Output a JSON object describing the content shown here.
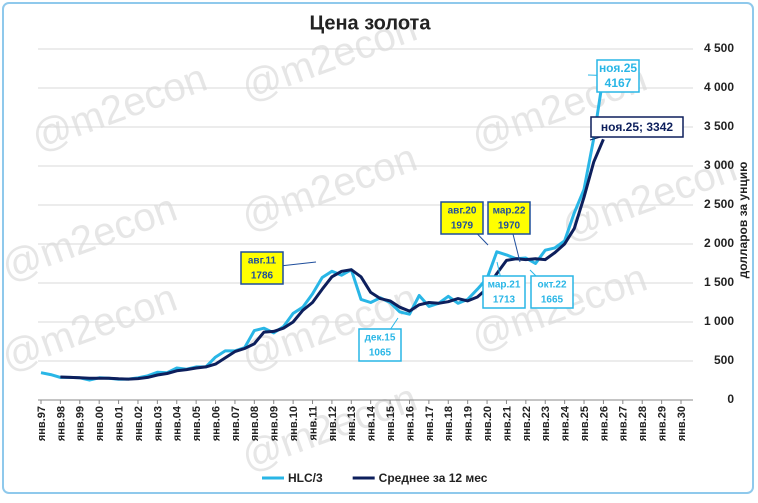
{
  "chart_data": {
    "type": "line",
    "title": "Цена золота",
    "watermark": "@m2econ",
    "y_label": "долларов за унцию",
    "categories": [
      "янв.97",
      null,
      "янв.98",
      null,
      "янв.99",
      null,
      "янв.00",
      null,
      "янв.01",
      null,
      "янв.02",
      null,
      "янв.03",
      null,
      "янв.04",
      null,
      "янв.05",
      null,
      "янв.06",
      null,
      "янв.07",
      null,
      "янв.08",
      null,
      "янв.09",
      null,
      "янв.10",
      null,
      "янв.11",
      null,
      "янв.12",
      null,
      "янв.13",
      null,
      "янв.14",
      null,
      "янв.15",
      null,
      "янв.16",
      null,
      "янв.17",
      null,
      "янв.18",
      null,
      "янв.19",
      null,
      "янв.20",
      null,
      "янв.21",
      null,
      "янв.22",
      null,
      "янв.23",
      null,
      "янв.24",
      null,
      "янв.25",
      null,
      "янв.26",
      null,
      "янв.27",
      null,
      "янв.28",
      null,
      "янв.29",
      null,
      "янв.30",
      null
    ],
    "series": [
      {
        "name": "HLC/3",
        "color": "#29b6e6",
        "width": 3,
        "values": [
          350,
          325,
          290,
          290,
          285,
          255,
          285,
          280,
          265,
          268,
          285,
          310,
          355,
          350,
          410,
          395,
          425,
          425,
          550,
          630,
          630,
          670,
          890,
          920,
          860,
          940,
          1110,
          1190,
          1360,
          1570,
          1650,
          1600,
          1670,
          1290,
          1250,
          1310,
          1250,
          1130,
          1100,
          1340,
          1200,
          1240,
          1330,
          1240,
          1290,
          1420,
          1560,
          1900,
          1860,
          1810,
          1820,
          1750,
          1920,
          1950,
          2040,
          2400,
          2700,
          3350,
          4167,
          null,
          null,
          null,
          null,
          null,
          null,
          null,
          null,
          null
        ]
      },
      {
        "name": "Среднее за 12 мес",
        "color": "#0d1f5c",
        "width": 3,
        "values": [
          null,
          null,
          295,
          290,
          285,
          280,
          280,
          280,
          272,
          268,
          275,
          290,
          320,
          340,
          375,
          390,
          410,
          425,
          460,
          540,
          620,
          660,
          720,
          870,
          880,
          920,
          1000,
          1150,
          1250,
          1420,
          1580,
          1650,
          1670,
          1580,
          1380,
          1300,
          1270,
          1190,
          1140,
          1220,
          1250,
          1240,
          1260,
          1300,
          1270,
          1320,
          1430,
          1620,
          1790,
          1810,
          1800,
          1810,
          1800,
          1890,
          2000,
          2200,
          2600,
          3050,
          3342,
          null,
          null,
          null,
          null,
          null,
          null,
          null,
          null,
          null
        ]
      }
    ],
    "ylim": [
      0,
      4500
    ],
    "yticks": [
      0,
      500,
      {
        "value": 1000,
        "label": "1 000"
      },
      {
        "value": 1500,
        "label": "1 500"
      },
      {
        "value": 2000,
        "label": "2 000"
      },
      {
        "value": 2500,
        "label": "2 500"
      },
      {
        "value": 3000,
        "label": "3 000"
      },
      {
        "value": 3500,
        "label": "3 500"
      },
      {
        "value": 4000,
        "label": "4 000"
      },
      {
        "value": 4500,
        "label": "4 500"
      }
    ],
    "grid": true,
    "annotations": [
      {
        "label": "авг.11",
        "value": 1786,
        "fill": "#ffff00",
        "color": "#1f4e9c"
      },
      {
        "label": "дек.15",
        "value": 1065,
        "fill": "#ffffff",
        "color": "#29b6e6"
      },
      {
        "label": "авг.20",
        "value": 1979,
        "fill": "#ffff00",
        "color": "#1f4e9c"
      },
      {
        "label": "мар.21",
        "value": 1713,
        "fill": "#ffffff",
        "color": "#29b6e6"
      },
      {
        "label": "мар.22",
        "value": 1970,
        "fill": "#ffff00",
        "color": "#1f4e9c"
      },
      {
        "label": "окт.22",
        "value": 1665,
        "fill": "#ffffff",
        "color": "#29b6e6"
      },
      {
        "label": "ноя.25",
        "value": 4167,
        "fill": "#ffffff",
        "color": "#29b6e6"
      },
      {
        "text": "ноя.25; 3342",
        "fill": "#ffffff",
        "color": "#0d1f5c"
      }
    ]
  }
}
